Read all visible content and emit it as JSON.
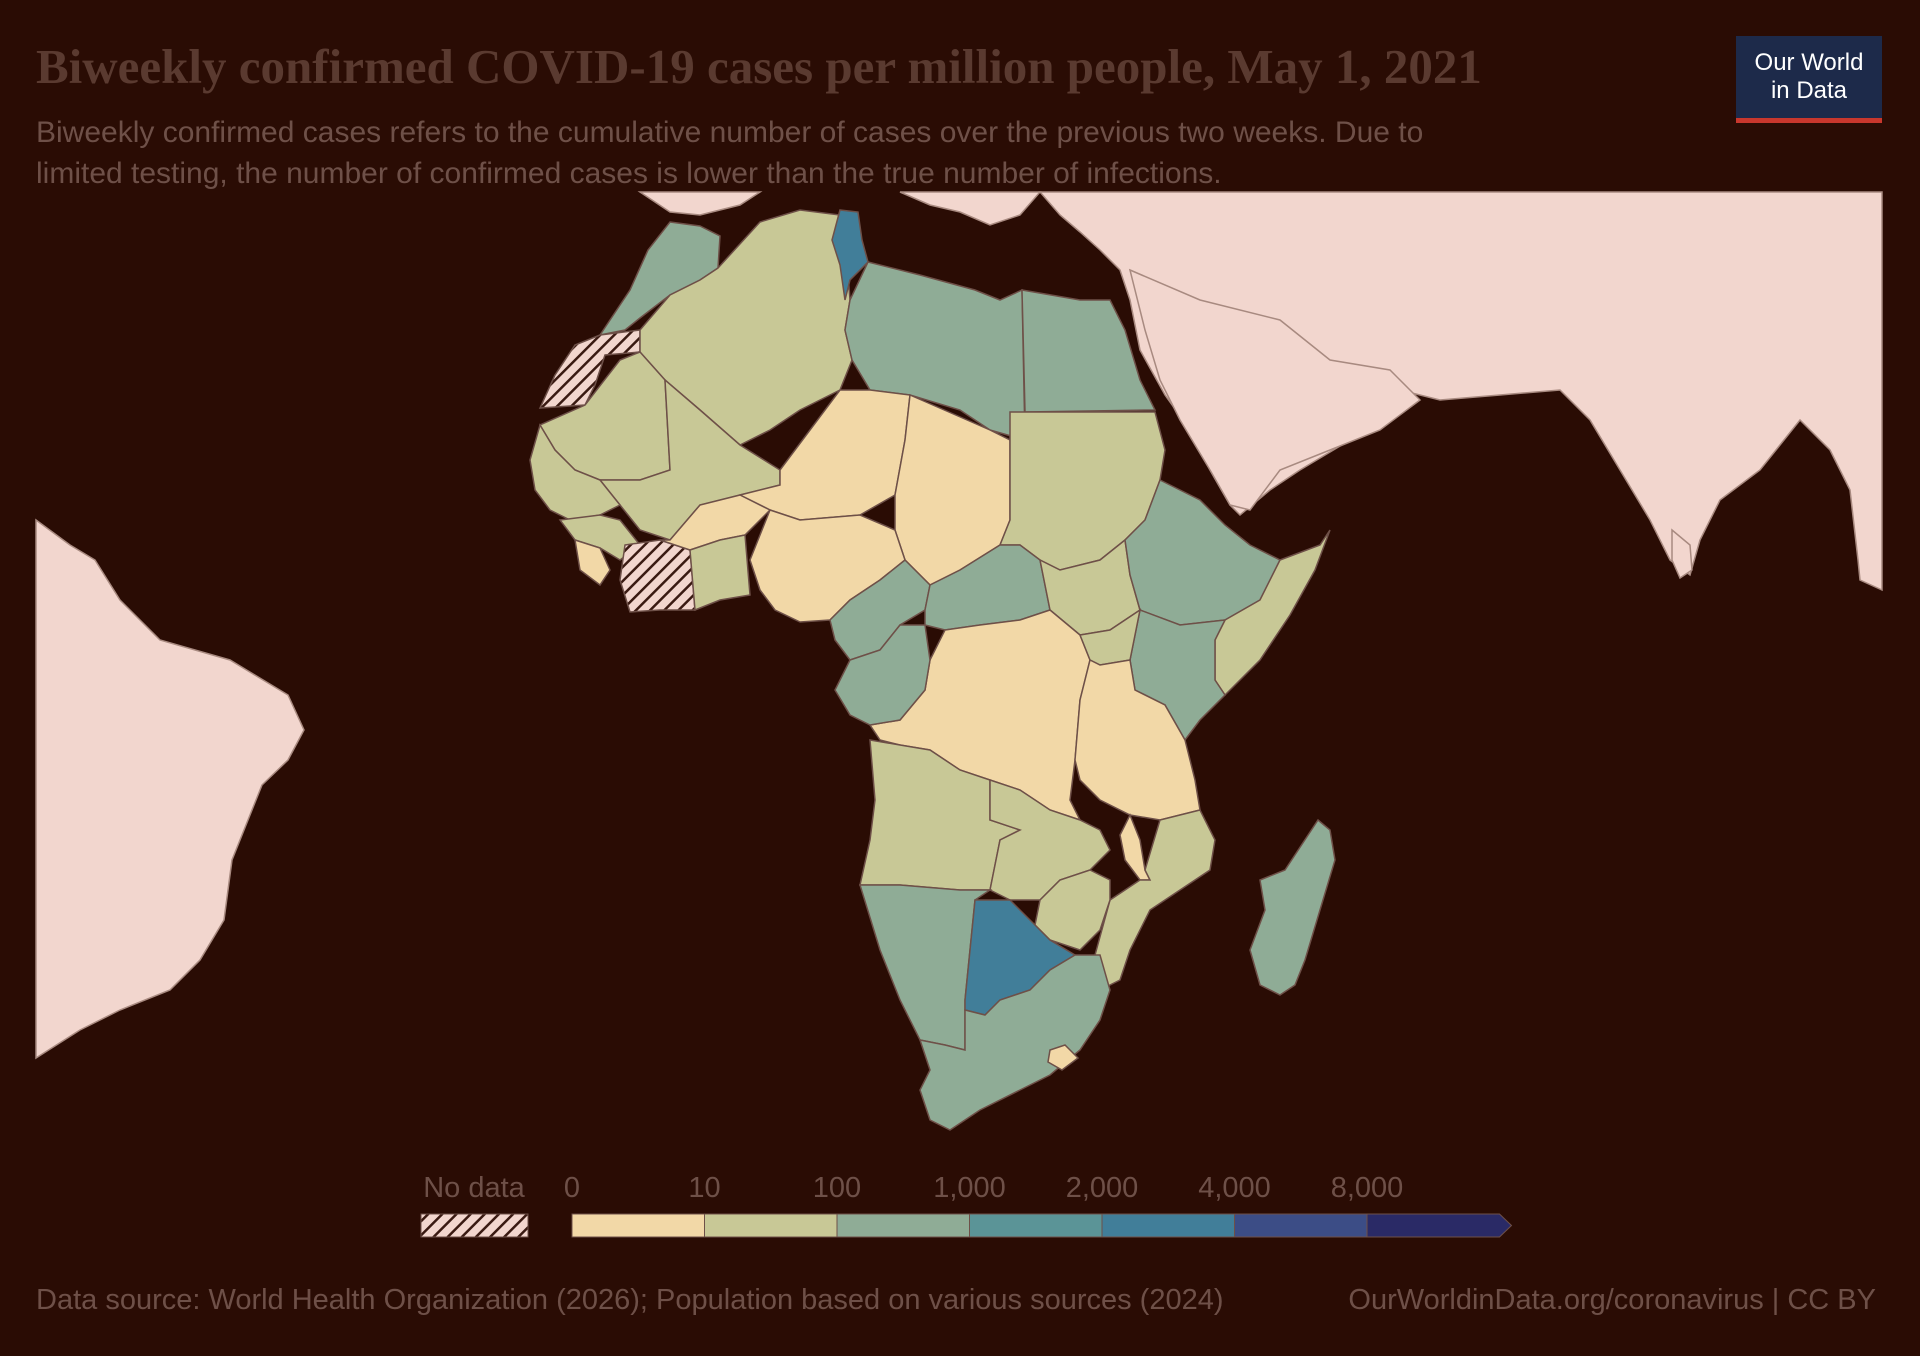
{
  "header": {
    "title": "Biweekly confirmed COVID-19 cases per million people, May 1, 2021",
    "subtitle_line1": "Biweekly confirmed cases refers to the cumulative number of cases over the previous two weeks. Due to",
    "subtitle_line2": "limited testing, the number of confirmed cases is lower than the true number of infections."
  },
  "logo": {
    "line1": "Our World",
    "line2": "in Data"
  },
  "legend": {
    "no_data_label": "No data",
    "bins": [
      {
        "label": "0",
        "color": "#f2d8a7"
      },
      {
        "label": "10",
        "color": "#c8c896"
      },
      {
        "label": "100",
        "color": "#8fac96"
      },
      {
        "label": "1,000",
        "color": "#5b9497"
      },
      {
        "label": "2,000",
        "color": "#417e99"
      },
      {
        "label": "4,000",
        "color": "#3c4d86"
      },
      {
        "label": "8,000",
        "color": "#2a2a66"
      }
    ],
    "no_data_pattern": "hatched",
    "outside_region_color": "#f2d6ce"
  },
  "map": {
    "regions": [
      {
        "name": "Morocco",
        "bin": "100 – 1,000"
      },
      {
        "name": "Algeria",
        "bin": "10 – 100"
      },
      {
        "name": "Tunisia",
        "bin": "2,000 – 4,000"
      },
      {
        "name": "Libya",
        "bin": "100 – 1,000"
      },
      {
        "name": "Egypt",
        "bin": "100 – 1,000"
      },
      {
        "name": "Western Sahara",
        "bin": "No data"
      },
      {
        "name": "Mauritania",
        "bin": "10 – 100"
      },
      {
        "name": "Mali",
        "bin": "10 – 100"
      },
      {
        "name": "Niger",
        "bin": "0 – 10"
      },
      {
        "name": "Chad",
        "bin": "0 – 10"
      },
      {
        "name": "Sudan",
        "bin": "10 – 100"
      },
      {
        "name": "Nigeria",
        "bin": "0 – 10"
      },
      {
        "name": "Côte d'Ivoire",
        "bin": "No data"
      },
      {
        "name": "Ethiopia",
        "bin": "100 – 1,000"
      },
      {
        "name": "Somalia",
        "bin": "10 – 100"
      },
      {
        "name": "Kenya",
        "bin": "100 – 1,000"
      },
      {
        "name": "DR Congo",
        "bin": "0 – 10"
      },
      {
        "name": "Tanzania",
        "bin": "0 – 10"
      },
      {
        "name": "Angola",
        "bin": "10 – 100"
      },
      {
        "name": "Namibia",
        "bin": "100 – 1,000"
      },
      {
        "name": "Botswana",
        "bin": "2,000 – 4,000"
      },
      {
        "name": "South Africa",
        "bin": "100 – 1,000"
      },
      {
        "name": "Madagascar",
        "bin": "100 – 1,000"
      },
      {
        "name": "Mozambique",
        "bin": "10 – 100"
      },
      {
        "name": "Cameroon",
        "bin": "100 – 1,000"
      },
      {
        "name": "Central African Republic",
        "bin": "100 – 1,000"
      }
    ]
  },
  "footer": {
    "source": "Data source: World Health Organization (2026); Population based on various sources (2024)",
    "credit": "OurWorldinData.org/coronavirus | CC BY"
  }
}
